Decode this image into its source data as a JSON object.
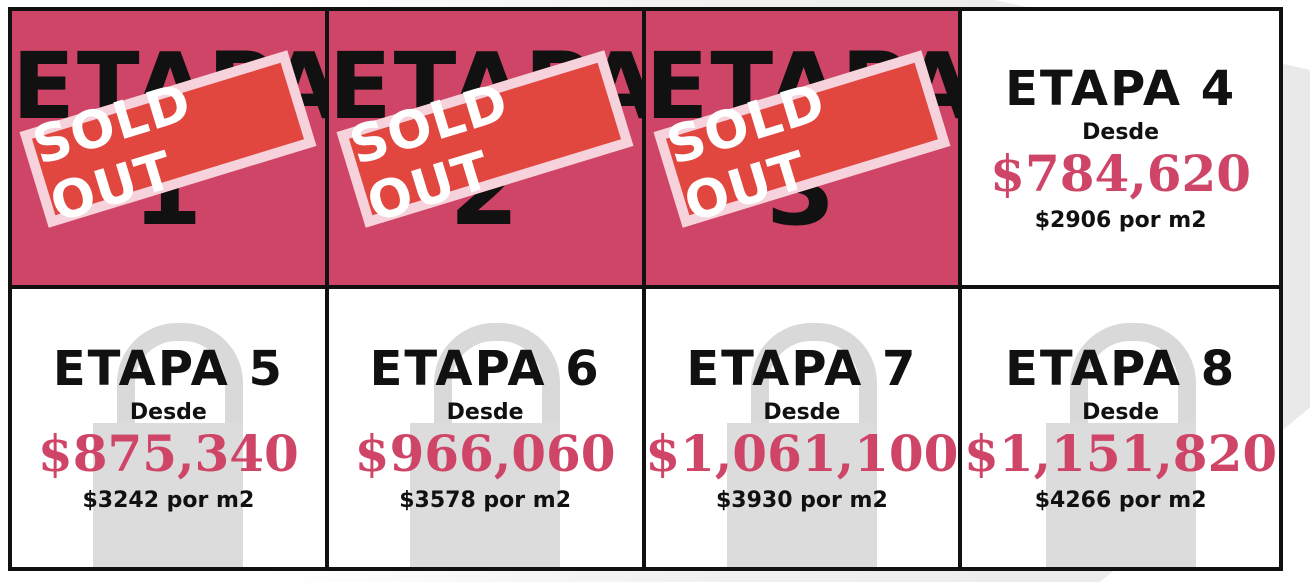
{
  "etapas": [
    {
      "label": "ETAPA",
      "number": "1",
      "stamp": "SOLD OUT"
    },
    {
      "label": "ETAPA",
      "number": "2",
      "stamp": "SOLD OUT"
    },
    {
      "label": "ETAPA",
      "number": "3",
      "stamp": "SOLD OUT"
    },
    {
      "title": "ETAPA 4",
      "desde": "Desde",
      "price": "$784,620",
      "per_m2": "$2906 por m2"
    },
    {
      "title": "ETAPA 5",
      "desde": "Desde",
      "price": "$875,340",
      "per_m2": "$3242 por m2"
    },
    {
      "title": "ETAPA 6",
      "desde": "Desde",
      "price": "$966,060",
      "per_m2": "$3578 por m2"
    },
    {
      "title": "ETAPA 7",
      "desde": "Desde",
      "price": "$1,061,100",
      "per_m2": "$3930 por m2"
    },
    {
      "title": "ETAPA 8",
      "desde": "Desde",
      "price": "$1,151,820",
      "per_m2": "$4266 por m2"
    }
  ],
  "colors": {
    "accent": "#cf4567",
    "stamp": "#e2473f",
    "stamp_border": "#f6d3dc",
    "lock": "#d9d9d9"
  }
}
